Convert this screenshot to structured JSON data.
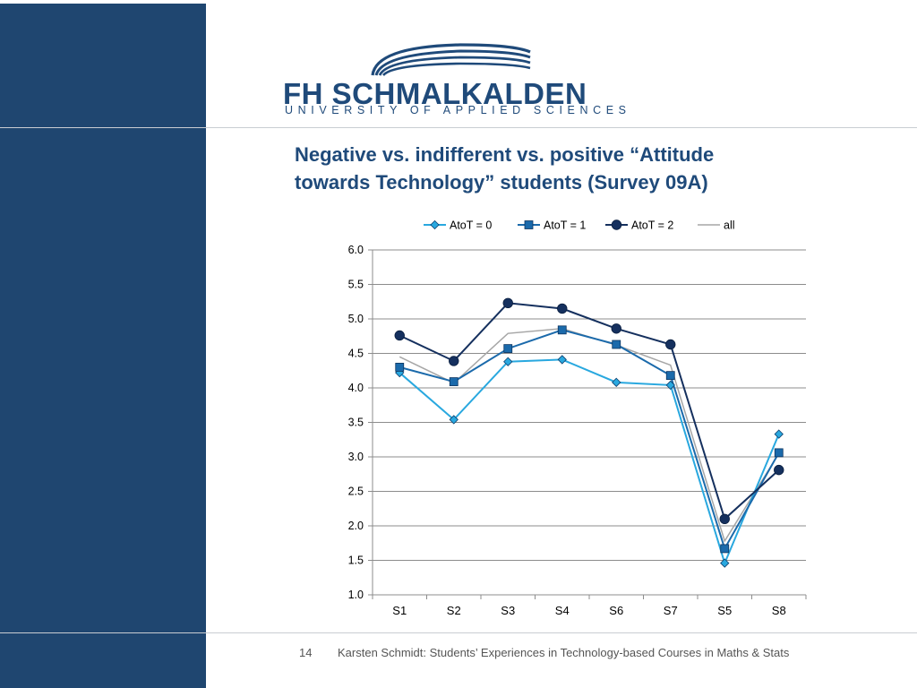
{
  "logo": {
    "name": "FH SCHMALKALDEN",
    "subtitle": "UNIVERSITY OF APPLIED SCIENCES"
  },
  "slide": {
    "title_line1": "Negative vs. indifferent vs. positive “Attitude",
    "title_line2": "towards Technology” students (Survey 09A)"
  },
  "footer": {
    "page": "14",
    "text": "Karsten Schmidt:  Students’ Experiences in Technology-based Courses in Maths & Stats"
  },
  "colors": {
    "side_panel": "#1f4670",
    "title": "#1f4a7a"
  },
  "chart_data": {
    "type": "line",
    "x": [
      "S1",
      "S2",
      "S3",
      "S4",
      "S6",
      "S7",
      "S5",
      "S8"
    ],
    "ylim": [
      1.0,
      6.0
    ],
    "yticks": [
      "1.0",
      "1.5",
      "2.0",
      "2.5",
      "3.0",
      "3.5",
      "4.0",
      "4.5",
      "5.0",
      "5.5",
      "6.0"
    ],
    "grid": true,
    "legend_position": "top",
    "series": [
      {
        "name": "AtoT = 0",
        "color": "#29a8df",
        "marker": "diamond",
        "values": [
          4.22,
          3.54,
          4.38,
          4.41,
          4.08,
          4.04,
          1.46,
          3.33
        ]
      },
      {
        "name": "AtoT = 1",
        "color": "#1b6aab",
        "marker": "square",
        "values": [
          4.3,
          4.09,
          4.57,
          4.84,
          4.63,
          4.18,
          1.67,
          3.06
        ]
      },
      {
        "name": "AtoT = 2",
        "color": "#15305e",
        "marker": "circle",
        "values": [
          4.76,
          4.39,
          5.23,
          5.15,
          4.86,
          4.63,
          2.1,
          2.81
        ]
      },
      {
        "name": "all",
        "color": "#a6a6a6",
        "marker": "none",
        "values": [
          4.45,
          4.07,
          4.79,
          4.86,
          4.62,
          4.33,
          1.78,
          3.05
        ]
      }
    ]
  }
}
